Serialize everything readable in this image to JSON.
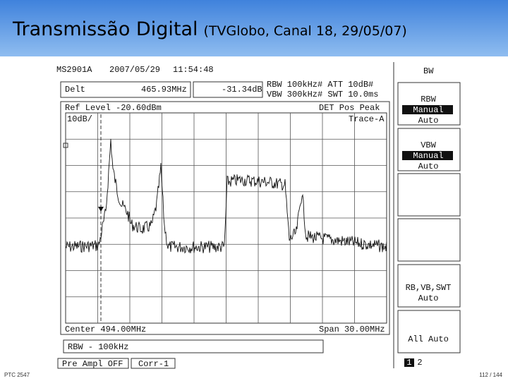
{
  "header": {
    "title": "Transmissão Digital",
    "subtitle": "(TVGlobo, Canal 18, 29/05/07)"
  },
  "screen": {
    "status": {
      "model": "MS2901A",
      "date": "2007/05/29",
      "time": "11:54:48"
    },
    "marker": {
      "mode": "Delt",
      "frequency": "465.93MHz",
      "level": "-31.34dB"
    },
    "settings": [
      "RBW 100kHz# ATT 10dB#",
      "VBW 300kHz# SWT 10.0ms"
    ],
    "plot": {
      "ref_level": "Ref Level -20.60dBm",
      "detector": "DET  Pos Peak",
      "scale": "10dB/",
      "trace": "Trace-A",
      "center": "Center 494.00MHz",
      "span": "Span 30.00MHz"
    },
    "message": "RBW - 100kHz",
    "footer": [
      "Pre Ampl OFF",
      "Corr-1"
    ],
    "menu": {
      "title": "BW",
      "keys": [
        {
          "label": "RBW",
          "options": [
            "Manual",
            "Auto"
          ]
        },
        {
          "label": "VBW",
          "options": [
            "Manual",
            "Auto"
          ]
        },
        {
          "label": "RB,VB,SWT",
          "options": [
            "Auto"
          ]
        },
        {
          "label": "All Auto"
        }
      ],
      "pages": [
        "1",
        "2"
      ]
    }
  },
  "footer": {
    "course": "PTC 2547",
    "page": "112 / 144"
  }
}
